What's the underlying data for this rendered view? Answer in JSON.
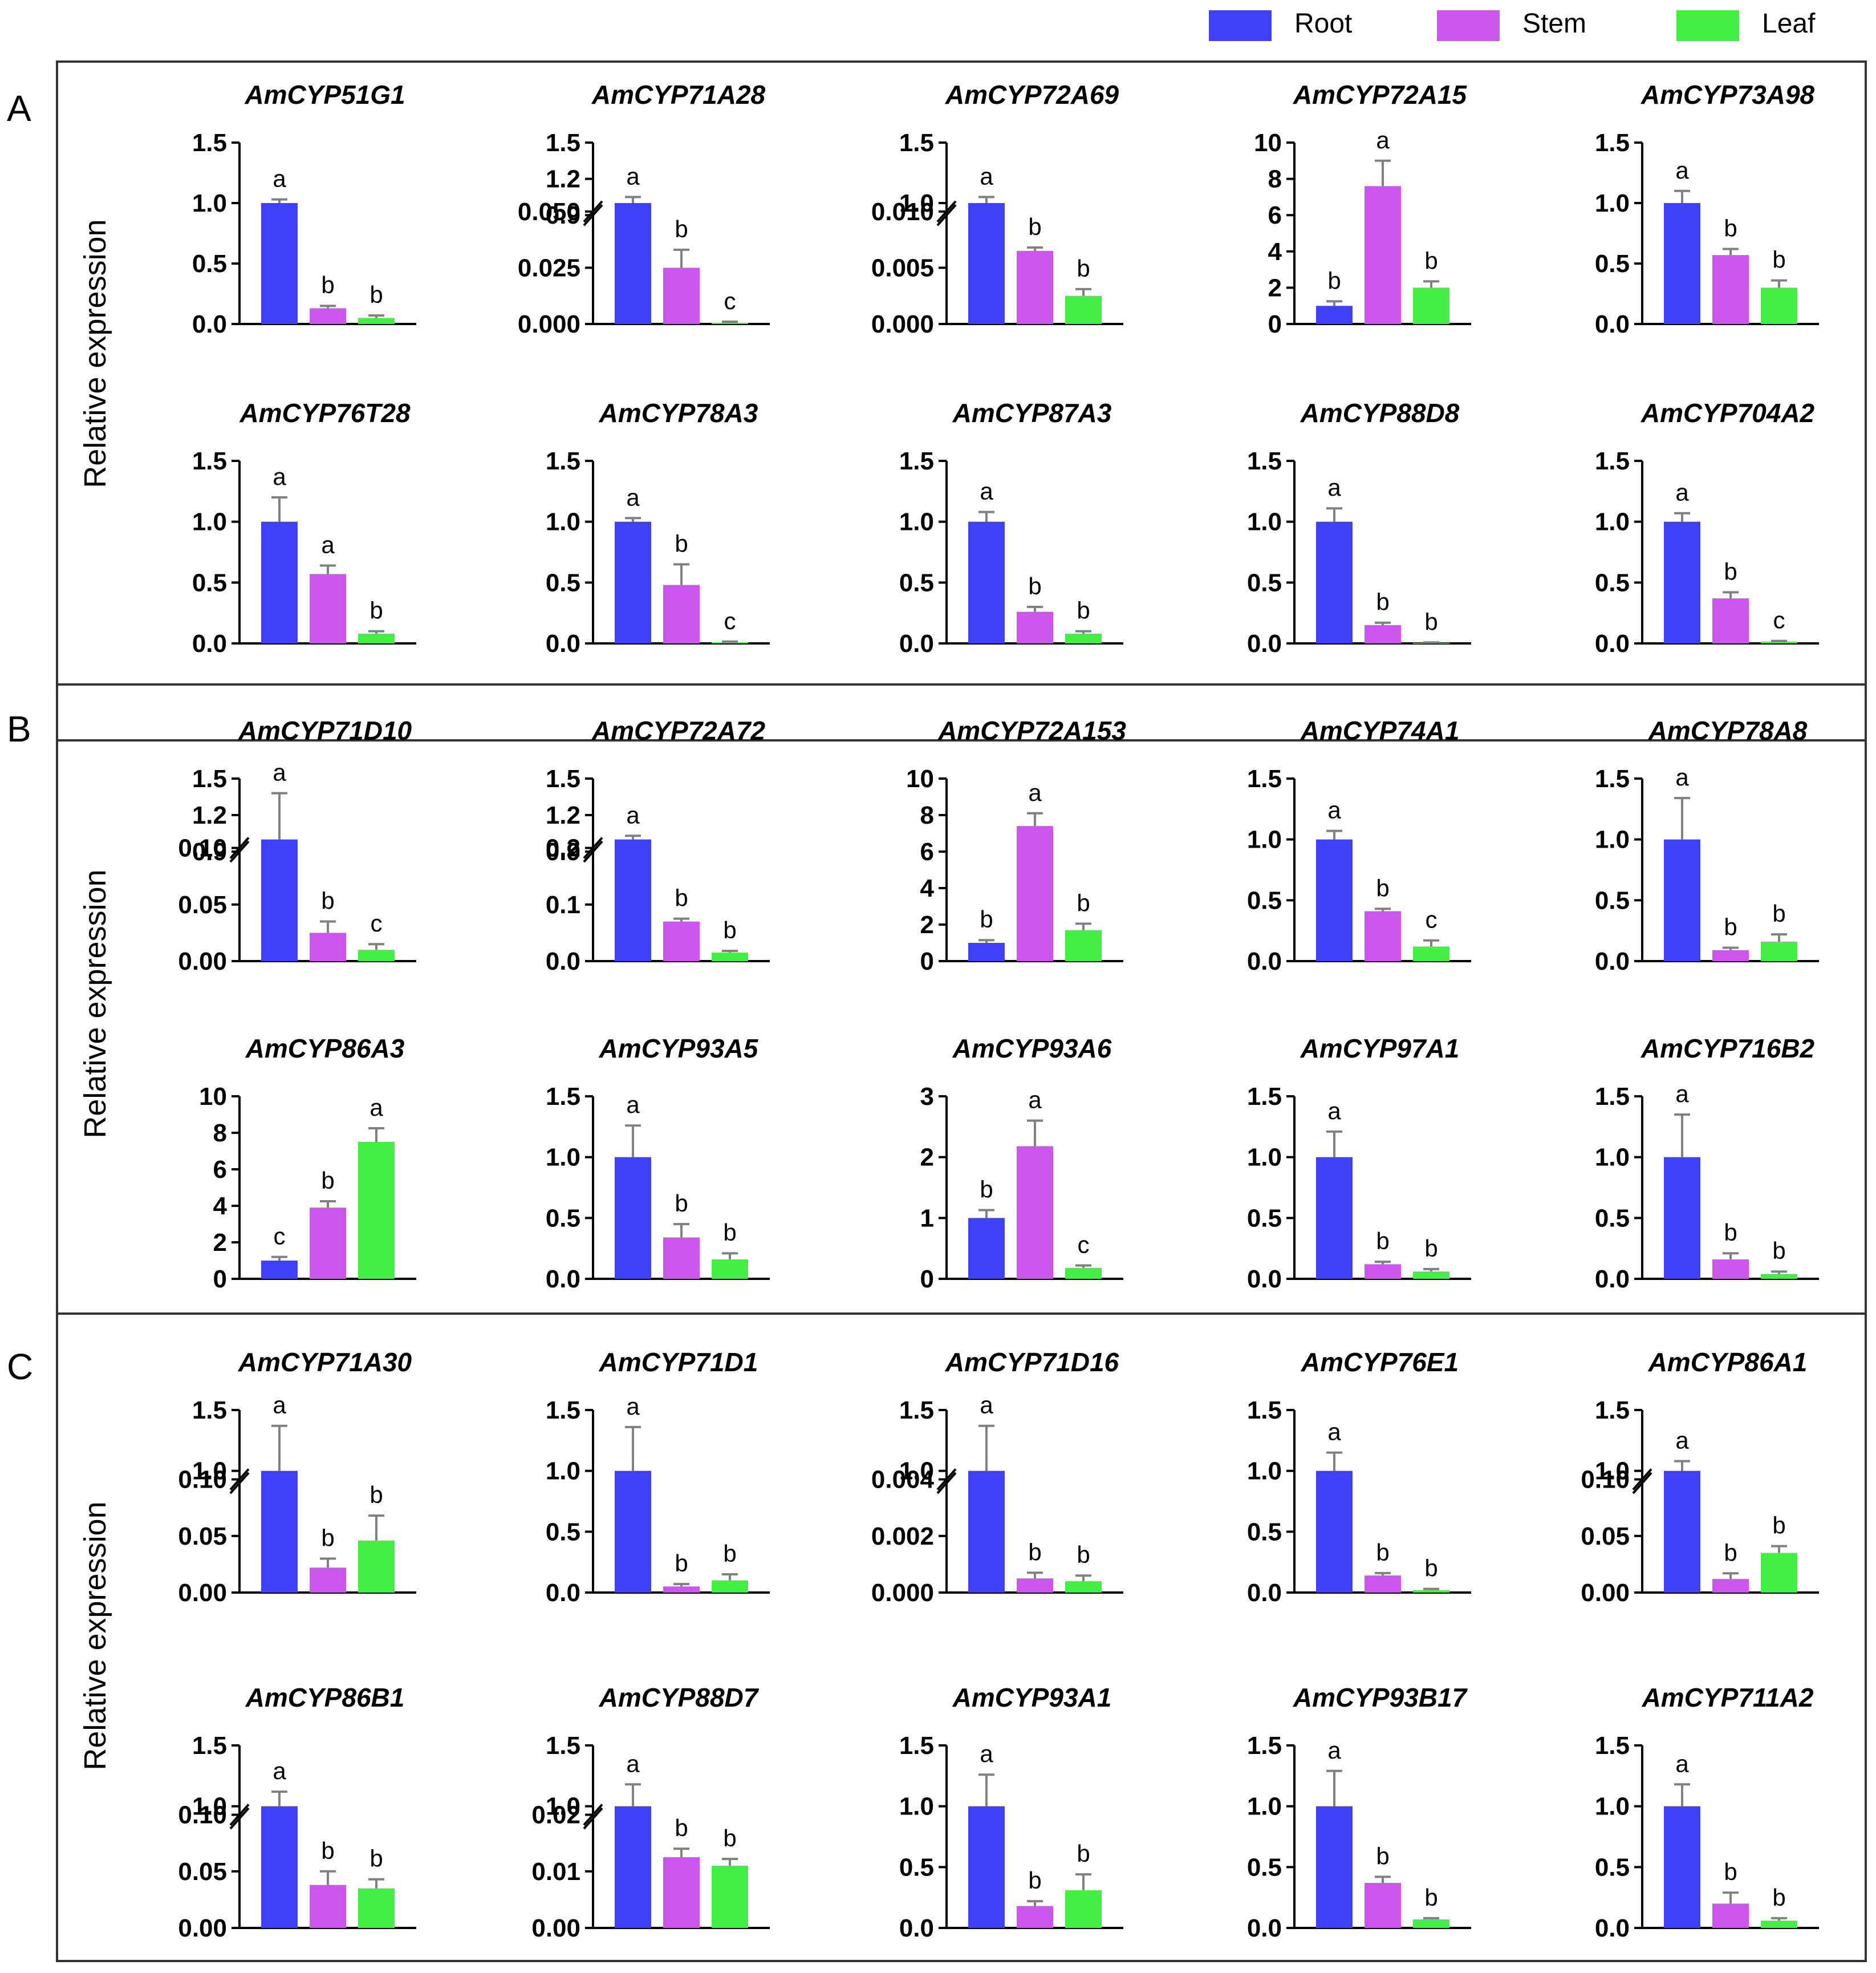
{
  "figure": {
    "legend": [
      {
        "label": "Root",
        "color": "#4040f8"
      },
      {
        "label": "Stem",
        "color": "#cc55ee"
      },
      {
        "label": "Leaf",
        "color": "#44ee44"
      }
    ],
    "y_axis_label": "Relative expression",
    "colors": {
      "axis": "#000000",
      "panel_border": "#333333",
      "error_bar": "#808080"
    }
  },
  "chart_data": [
    {
      "panel": "A",
      "type": "bar",
      "title": "AmCYP51G1",
      "categories": [
        "Root",
        "Stem",
        "Leaf"
      ],
      "values": [
        1.0,
        0.13,
        0.05
      ],
      "errors": [
        0.03,
        0.02,
        0.02
      ],
      "letters": [
        "a",
        "b",
        "b"
      ],
      "ylim": [
        0,
        1.5
      ],
      "ticks": [
        "0.0",
        "0.5",
        "1.0",
        "1.5"
      ],
      "broken": false
    },
    {
      "panel": "A",
      "type": "bar",
      "title": "AmCYP71A28",
      "categories": [
        "Root",
        "Stem",
        "Leaf"
      ],
      "values": [
        1.0,
        0.025,
        0.0005
      ],
      "errors": [
        0.05,
        0.008,
        0.0005
      ],
      "letters": [
        "a",
        "b",
        "c"
      ],
      "broken": true,
      "lower_ylim": [
        0,
        0.05
      ],
      "lower_ticks": [
        "0.000",
        "0.025",
        "0.050"
      ],
      "upper_ylim": [
        0.9,
        1.5
      ],
      "upper_ticks": [
        "0.9",
        "1.2",
        "1.5"
      ]
    },
    {
      "panel": "A",
      "type": "bar",
      "title": "AmCYP72A69",
      "categories": [
        "Root",
        "Stem",
        "Leaf"
      ],
      "values": [
        1.0,
        0.0065,
        0.0025
      ],
      "errors": [
        0.05,
        0.0003,
        0.0006
      ],
      "letters": [
        "a",
        "b",
        "b"
      ],
      "broken": true,
      "lower_ylim": [
        0,
        0.01
      ],
      "lower_ticks": [
        "0.000",
        "0.005",
        "0.010"
      ],
      "upper_ylim": [
        0.9,
        1.5
      ],
      "upper_ticks": [
        "1.0",
        "1.5"
      ]
    },
    {
      "panel": "A",
      "type": "bar",
      "title": "AmCYP72A15",
      "categories": [
        "Root",
        "Stem",
        "Leaf"
      ],
      "values": [
        1.0,
        7.6,
        2.0
      ],
      "errors": [
        0.25,
        1.4,
        0.35
      ],
      "letters": [
        "b",
        "a",
        "b"
      ],
      "ylim": [
        0,
        10
      ],
      "ticks": [
        "0",
        "2",
        "4",
        "6",
        "8",
        "10"
      ],
      "broken": false
    },
    {
      "panel": "A",
      "type": "bar",
      "title": "AmCYP73A98",
      "categories": [
        "Root",
        "Stem",
        "Leaf"
      ],
      "values": [
        1.0,
        0.57,
        0.3
      ],
      "errors": [
        0.1,
        0.05,
        0.06
      ],
      "letters": [
        "a",
        "b",
        "b"
      ],
      "ylim": [
        0,
        1.5
      ],
      "ticks": [
        "0.0",
        "0.5",
        "1.0",
        "1.5"
      ],
      "broken": false
    },
    {
      "panel": "A",
      "type": "bar",
      "title": "AmCYP76T28",
      "categories": [
        "Root",
        "Stem",
        "Leaf"
      ],
      "values": [
        1.0,
        0.57,
        0.08
      ],
      "errors": [
        0.2,
        0.07,
        0.02
      ],
      "letters": [
        "a",
        "a",
        "b"
      ],
      "ylim": [
        0,
        1.5
      ],
      "ticks": [
        "0.0",
        "0.5",
        "1.0",
        "1.5"
      ],
      "broken": false
    },
    {
      "panel": "A",
      "type": "bar",
      "title": "AmCYP78A3",
      "categories": [
        "Root",
        "Stem",
        "Leaf"
      ],
      "values": [
        1.0,
        0.48,
        0.01
      ],
      "errors": [
        0.03,
        0.17,
        0.005
      ],
      "letters": [
        "a",
        "b",
        "c"
      ],
      "ylim": [
        0,
        1.5
      ],
      "ticks": [
        "0.0",
        "0.5",
        "1.0",
        "1.5"
      ],
      "broken": false
    },
    {
      "panel": "A",
      "type": "bar",
      "title": "AmCYP87A3",
      "categories": [
        "Root",
        "Stem",
        "Leaf"
      ],
      "values": [
        1.0,
        0.26,
        0.08
      ],
      "errors": [
        0.08,
        0.04,
        0.02
      ],
      "letters": [
        "a",
        "b",
        "b"
      ],
      "ylim": [
        0,
        1.5
      ],
      "ticks": [
        "0.0",
        "0.5",
        "1.0",
        "1.5"
      ],
      "broken": false
    },
    {
      "panel": "A",
      "type": "bar",
      "title": "AmCYP88D8",
      "categories": [
        "Root",
        "Stem",
        "Leaf"
      ],
      "values": [
        1.0,
        0.15,
        0.005
      ],
      "errors": [
        0.11,
        0.02,
        0.003
      ],
      "letters": [
        "a",
        "b",
        "b"
      ],
      "ylim": [
        0,
        1.5
      ],
      "ticks": [
        "0.0",
        "0.5",
        "1.0",
        "1.5"
      ],
      "broken": false
    },
    {
      "panel": "A",
      "type": "bar",
      "title": "AmCYP704A2",
      "categories": [
        "Root",
        "Stem",
        "Leaf"
      ],
      "values": [
        1.0,
        0.37,
        0.015
      ],
      "errors": [
        0.07,
        0.05,
        0.005
      ],
      "letters": [
        "a",
        "b",
        "c"
      ],
      "ylim": [
        0,
        1.5
      ],
      "ticks": [
        "0.0",
        "0.5",
        "1.0",
        "1.5"
      ],
      "broken": false
    },
    {
      "panel": "B",
      "type": "bar",
      "title": "AmCYP71D10",
      "categories": [
        "Root",
        "Stem",
        "Leaf"
      ],
      "values": [
        1.0,
        0.025,
        0.01
      ],
      "errors": [
        0.38,
        0.01,
        0.005
      ],
      "letters": [
        "a",
        "b",
        "c"
      ],
      "broken": true,
      "lower_ylim": [
        0,
        0.1
      ],
      "lower_ticks": [
        "0.00",
        "0.05",
        "0.10"
      ],
      "upper_ylim": [
        0.9,
        1.5
      ],
      "upper_ticks": [
        "0.9",
        "1.2",
        "1.5"
      ]
    },
    {
      "panel": "B",
      "type": "bar",
      "title": "AmCYP72A72",
      "categories": [
        "Root",
        "Stem",
        "Leaf"
      ],
      "values": [
        1.0,
        0.07,
        0.015
      ],
      "errors": [
        0.03,
        0.005,
        0.003
      ],
      "letters": [
        "a",
        "b",
        "b"
      ],
      "broken": true,
      "lower_ylim": [
        0,
        0.2
      ],
      "lower_ticks": [
        "0.0",
        "0.1",
        "0.2"
      ],
      "upper_ylim": [
        0.9,
        1.5
      ],
      "upper_ticks": [
        "0.9",
        "1.2",
        "1.5"
      ]
    },
    {
      "panel": "B",
      "type": "bar",
      "title": "AmCYP72A153",
      "categories": [
        "Root",
        "Stem",
        "Leaf"
      ],
      "values": [
        1.0,
        7.4,
        1.7
      ],
      "errors": [
        0.15,
        0.7,
        0.35
      ],
      "letters": [
        "b",
        "a",
        "b"
      ],
      "ylim": [
        0,
        10
      ],
      "ticks": [
        "0",
        "2",
        "4",
        "6",
        "8",
        "10"
      ],
      "broken": false
    },
    {
      "panel": "B",
      "type": "bar",
      "title": "AmCYP74A1",
      "categories": [
        "Root",
        "Stem",
        "Leaf"
      ],
      "values": [
        1.0,
        0.41,
        0.12
      ],
      "errors": [
        0.07,
        0.02,
        0.05
      ],
      "letters": [
        "a",
        "b",
        "c"
      ],
      "ylim": [
        0,
        1.5
      ],
      "ticks": [
        "0.0",
        "0.5",
        "1.0",
        "1.5"
      ],
      "broken": false
    },
    {
      "panel": "B",
      "type": "bar",
      "title": "AmCYP78A8",
      "categories": [
        "Root",
        "Stem",
        "Leaf"
      ],
      "values": [
        1.0,
        0.09,
        0.16
      ],
      "errors": [
        0.34,
        0.02,
        0.06
      ],
      "letters": [
        "a",
        "b",
        "b"
      ],
      "ylim": [
        0,
        1.5
      ],
      "ticks": [
        "0.0",
        "0.5",
        "1.0",
        "1.5"
      ],
      "broken": false
    },
    {
      "panel": "B",
      "type": "bar",
      "title": "AmCYP86A3",
      "categories": [
        "Root",
        "Stem",
        "Leaf"
      ],
      "values": [
        1.0,
        3.9,
        7.5
      ],
      "errors": [
        0.2,
        0.35,
        0.75
      ],
      "letters": [
        "c",
        "b",
        "a"
      ],
      "ylim": [
        0,
        10
      ],
      "ticks": [
        "0",
        "2",
        "4",
        "6",
        "8",
        "10"
      ],
      "broken": false
    },
    {
      "panel": "B",
      "type": "bar",
      "title": "AmCYP93A5",
      "categories": [
        "Root",
        "Stem",
        "Leaf"
      ],
      "values": [
        1.0,
        0.34,
        0.16
      ],
      "errors": [
        0.26,
        0.11,
        0.05
      ],
      "letters": [
        "a",
        "b",
        "b"
      ],
      "ylim": [
        0,
        1.5
      ],
      "ticks": [
        "0.0",
        "0.5",
        "1.0",
        "1.5"
      ],
      "broken": false
    },
    {
      "panel": "B",
      "type": "bar",
      "title": "AmCYP93A6",
      "categories": [
        "Root",
        "Stem",
        "Leaf"
      ],
      "values": [
        1.0,
        2.18,
        0.18
      ],
      "errors": [
        0.13,
        0.42,
        0.04
      ],
      "letters": [
        "b",
        "a",
        "c"
      ],
      "ylim": [
        0,
        3
      ],
      "ticks": [
        "0",
        "1",
        "2",
        "3"
      ],
      "broken": false
    },
    {
      "panel": "B",
      "type": "bar",
      "title": "AmCYP97A1",
      "categories": [
        "Root",
        "Stem",
        "Leaf"
      ],
      "values": [
        1.0,
        0.12,
        0.06
      ],
      "errors": [
        0.21,
        0.02,
        0.02
      ],
      "letters": [
        "a",
        "b",
        "b"
      ],
      "ylim": [
        0,
        1.5
      ],
      "ticks": [
        "0.0",
        "0.5",
        "1.0",
        "1.5"
      ],
      "broken": false
    },
    {
      "panel": "B",
      "type": "bar",
      "title": "AmCYP716B2",
      "categories": [
        "Root",
        "Stem",
        "Leaf"
      ],
      "values": [
        1.0,
        0.16,
        0.04
      ],
      "errors": [
        0.35,
        0.05,
        0.02
      ],
      "letters": [
        "a",
        "b",
        "b"
      ],
      "ylim": [
        0,
        1.5
      ],
      "ticks": [
        "0.0",
        "0.5",
        "1.0",
        "1.5"
      ],
      "broken": false
    },
    {
      "panel": "C",
      "type": "bar",
      "title": "AmCYP71A30",
      "categories": [
        "Root",
        "Stem",
        "Leaf"
      ],
      "values": [
        1.0,
        0.022,
        0.046
      ],
      "errors": [
        0.37,
        0.008,
        0.022
      ],
      "letters": [
        "a",
        "b",
        "b"
      ],
      "broken": true,
      "lower_ylim": [
        0,
        0.1
      ],
      "lower_ticks": [
        "0.00",
        "0.05",
        "0.10"
      ],
      "upper_ylim": [
        0.9,
        1.5
      ],
      "upper_ticks": [
        "1.0",
        "1.5"
      ]
    },
    {
      "panel": "C",
      "type": "bar",
      "title": "AmCYP71D1",
      "categories": [
        "Root",
        "Stem",
        "Leaf"
      ],
      "values": [
        1.0,
        0.05,
        0.1
      ],
      "errors": [
        0.36,
        0.02,
        0.05
      ],
      "letters": [
        "a",
        "b",
        "b"
      ],
      "ylim": [
        0,
        1.5
      ],
      "ticks": [
        "0.0",
        "0.5",
        "1.0",
        "1.5"
      ],
      "broken": false
    },
    {
      "panel": "C",
      "type": "bar",
      "title": "AmCYP71D16",
      "categories": [
        "Root",
        "Stem",
        "Leaf"
      ],
      "values": [
        1.0,
        0.0005,
        0.0004
      ],
      "errors": [
        0.37,
        0.0002,
        0.0002
      ],
      "letters": [
        "a",
        "b",
        "b"
      ],
      "broken": true,
      "lower_ylim": [
        0,
        0.004
      ],
      "lower_ticks": [
        "0.000",
        "0.002",
        "0.004"
      ],
      "upper_ylim": [
        0.9,
        1.5
      ],
      "upper_ticks": [
        "1.0",
        "1.5"
      ]
    },
    {
      "panel": "C",
      "type": "bar",
      "title": "AmCYP76E1",
      "categories": [
        "Root",
        "Stem",
        "Leaf"
      ],
      "values": [
        1.0,
        0.14,
        0.02
      ],
      "errors": [
        0.15,
        0.02,
        0.01
      ],
      "letters": [
        "a",
        "b",
        "b"
      ],
      "ylim": [
        0,
        1.5
      ],
      "ticks": [
        "0.0",
        "0.5",
        "1.0",
        "1.5"
      ],
      "broken": false
    },
    {
      "panel": "C",
      "type": "bar",
      "title": "AmCYP86A1",
      "categories": [
        "Root",
        "Stem",
        "Leaf"
      ],
      "values": [
        1.0,
        0.012,
        0.035
      ],
      "errors": [
        0.08,
        0.005,
        0.006
      ],
      "letters": [
        "a",
        "b",
        "b"
      ],
      "broken": true,
      "lower_ylim": [
        0,
        0.1
      ],
      "lower_ticks": [
        "0.00",
        "0.05",
        "0.10"
      ],
      "upper_ylim": [
        0.9,
        1.5
      ],
      "upper_ticks": [
        "1.0",
        "1.5"
      ]
    },
    {
      "panel": "C",
      "type": "bar",
      "title": "AmCYP86B1",
      "categories": [
        "Root",
        "Stem",
        "Leaf"
      ],
      "values": [
        1.0,
        0.038,
        0.035
      ],
      "errors": [
        0.12,
        0.012,
        0.008
      ],
      "letters": [
        "a",
        "b",
        "b"
      ],
      "broken": true,
      "lower_ylim": [
        0,
        0.1
      ],
      "lower_ticks": [
        "0.00",
        "0.05",
        "0.10"
      ],
      "upper_ylim": [
        0.9,
        1.5
      ],
      "upper_ticks": [
        "1.0",
        "1.5"
      ]
    },
    {
      "panel": "C",
      "type": "bar",
      "title": "AmCYP88D7",
      "categories": [
        "Root",
        "Stem",
        "Leaf"
      ],
      "values": [
        1.0,
        0.0125,
        0.011
      ],
      "errors": [
        0.18,
        0.0015,
        0.0012
      ],
      "letters": [
        "a",
        "b",
        "b"
      ],
      "broken": true,
      "lower_ylim": [
        0,
        0.02
      ],
      "lower_ticks": [
        "0.00",
        "0.01",
        "0.02"
      ],
      "upper_ylim": [
        0.9,
        1.5
      ],
      "upper_ticks": [
        "1.0",
        "1.5"
      ]
    },
    {
      "panel": "C",
      "type": "bar",
      "title": "AmCYP93A1",
      "categories": [
        "Root",
        "Stem",
        "Leaf"
      ],
      "values": [
        1.0,
        0.18,
        0.31
      ],
      "errors": [
        0.26,
        0.04,
        0.13
      ],
      "letters": [
        "a",
        "b",
        "b"
      ],
      "ylim": [
        0,
        1.5
      ],
      "ticks": [
        "0.0",
        "0.5",
        "1.0",
        "1.5"
      ],
      "broken": false
    },
    {
      "panel": "C",
      "type": "bar",
      "title": "AmCYP93B17",
      "categories": [
        "Root",
        "Stem",
        "Leaf"
      ],
      "values": [
        1.0,
        0.37,
        0.07
      ],
      "errors": [
        0.29,
        0.05,
        0.01
      ],
      "letters": [
        "a",
        "b",
        "b"
      ],
      "ylim": [
        0,
        1.5
      ],
      "ticks": [
        "0.0",
        "0.5",
        "1.0",
        "1.5"
      ],
      "broken": false
    },
    {
      "panel": "C",
      "type": "bar",
      "title": "AmCYP711A2",
      "categories": [
        "Root",
        "Stem",
        "Leaf"
      ],
      "values": [
        1.0,
        0.2,
        0.06
      ],
      "errors": [
        0.18,
        0.09,
        0.02
      ],
      "letters": [
        "a",
        "b",
        "b"
      ],
      "ylim": [
        0,
        1.5
      ],
      "ticks": [
        "0.0",
        "0.5",
        "1.0",
        "1.5"
      ],
      "broken": false
    }
  ]
}
